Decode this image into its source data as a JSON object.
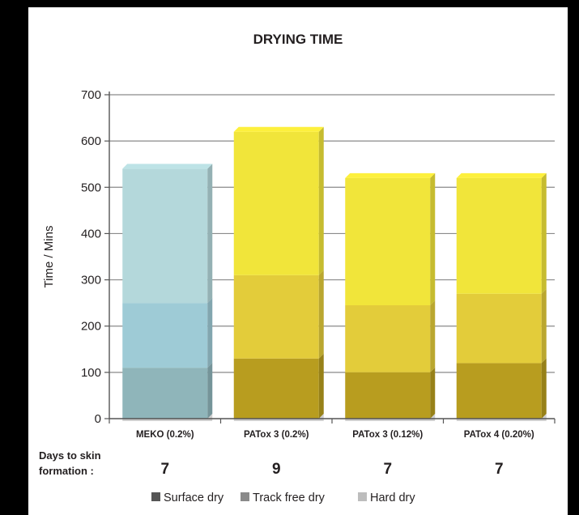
{
  "chart_data": {
    "type": "bar",
    "stacked": true,
    "title": "DRYING TIME",
    "xlabel": "",
    "ylabel": "Time / Mins",
    "ylim": [
      0,
      700
    ],
    "yticks": [
      0,
      100,
      200,
      300,
      400,
      500,
      600,
      700
    ],
    "grid": true,
    "legend_position": "bottom",
    "categories": [
      "MEKO (0.2%)",
      "PATox 3 (0.2%)",
      "PATox 3 (0.12%)",
      "PATox 4 (0.20%)"
    ],
    "series": [
      {
        "name": "Surface dry",
        "values": [
          110,
          130,
          100,
          120
        ],
        "legend_color": "#555555"
      },
      {
        "name": "Track free dry",
        "values": [
          140,
          180,
          145,
          150
        ],
        "legend_color": "#8a8a8a"
      },
      {
        "name": "Hard dry",
        "values": [
          290,
          310,
          275,
          250
        ],
        "legend_color": "#bdbdbd"
      }
    ],
    "bar_colors": {
      "MEKO (0.2%)": [
        "#8fb5ba",
        "#9ecbd6",
        "#b4d8db"
      ],
      "PATox 3 (0.2%)": [
        "#b89d1f",
        "#e3cc3a",
        "#f1e53a"
      ],
      "PATox 3 (0.12%)": [
        "#b89d1f",
        "#e3cc3a",
        "#f1e53a"
      ],
      "PATox 4 (0.20%)": [
        "#b89d1f",
        "#e3cc3a",
        "#f1e53a"
      ]
    },
    "days_label": "Days to skin formation :",
    "days_label_lines": [
      "Days to skin",
      "formation :"
    ],
    "days_values": [
      "7",
      "9",
      "7",
      "7"
    ]
  }
}
